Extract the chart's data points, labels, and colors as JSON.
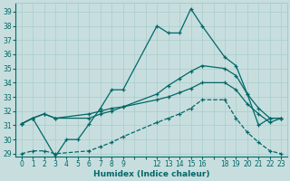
{
  "xlabel": "Humidex (Indice chaleur)",
  "background_color": "#c8dede",
  "grid_color": "#a8cccc",
  "line_color": "#006868",
  "ylim": [
    28.8,
    39.6
  ],
  "yticks": [
    29,
    30,
    31,
    32,
    33,
    34,
    35,
    36,
    37,
    38,
    39
  ],
  "xtick_labels": [
    "0",
    "1",
    "2",
    "3",
    "4",
    "5",
    "6",
    "7",
    "8",
    "9",
    "",
    "",
    "12",
    "13",
    "14",
    "15",
    "16",
    "",
    "18",
    "19",
    "20",
    "21",
    "22",
    "23"
  ],
  "n_xticks": 24,
  "line1_x": [
    0,
    1,
    3,
    4,
    5,
    6,
    7,
    8,
    9,
    12,
    13,
    14,
    15,
    16,
    18,
    19,
    20,
    21,
    22,
    23
  ],
  "line1_y": [
    31.1,
    31.5,
    28.8,
    30.0,
    30.0,
    31.1,
    32.2,
    33.5,
    33.5,
    38.0,
    37.5,
    37.5,
    39.2,
    38.0,
    35.8,
    35.2,
    33.2,
    31.0,
    31.5,
    31.5
  ],
  "line2_x": [
    0,
    1,
    2,
    3,
    6,
    7,
    8,
    9,
    12,
    13,
    14,
    15,
    16,
    18,
    19,
    20,
    21,
    22,
    23
  ],
  "line2_y": [
    31.1,
    31.5,
    31.8,
    31.5,
    31.5,
    31.8,
    32.0,
    32.3,
    33.2,
    33.8,
    34.3,
    34.8,
    35.2,
    35.0,
    34.5,
    33.2,
    32.2,
    31.5,
    31.5
  ],
  "line3_x": [
    0,
    1,
    2,
    3,
    6,
    7,
    8,
    9,
    12,
    13,
    14,
    15,
    16,
    18,
    19,
    20,
    21,
    22,
    23
  ],
  "line3_y": [
    31.1,
    31.5,
    31.8,
    31.5,
    31.8,
    32.0,
    32.2,
    32.3,
    32.8,
    33.0,
    33.3,
    33.6,
    34.0,
    34.0,
    33.5,
    32.5,
    31.8,
    31.2,
    31.5
  ],
  "line4_x": [
    0,
    1,
    2,
    3,
    6,
    7,
    8,
    9,
    12,
    13,
    14,
    15,
    16,
    18,
    19,
    20,
    21,
    22,
    23
  ],
  "line4_y": [
    29.0,
    29.2,
    29.2,
    29.0,
    29.2,
    29.5,
    29.8,
    30.2,
    31.2,
    31.5,
    31.8,
    32.2,
    32.8,
    32.8,
    31.5,
    30.5,
    29.8,
    29.2,
    29.0
  ]
}
